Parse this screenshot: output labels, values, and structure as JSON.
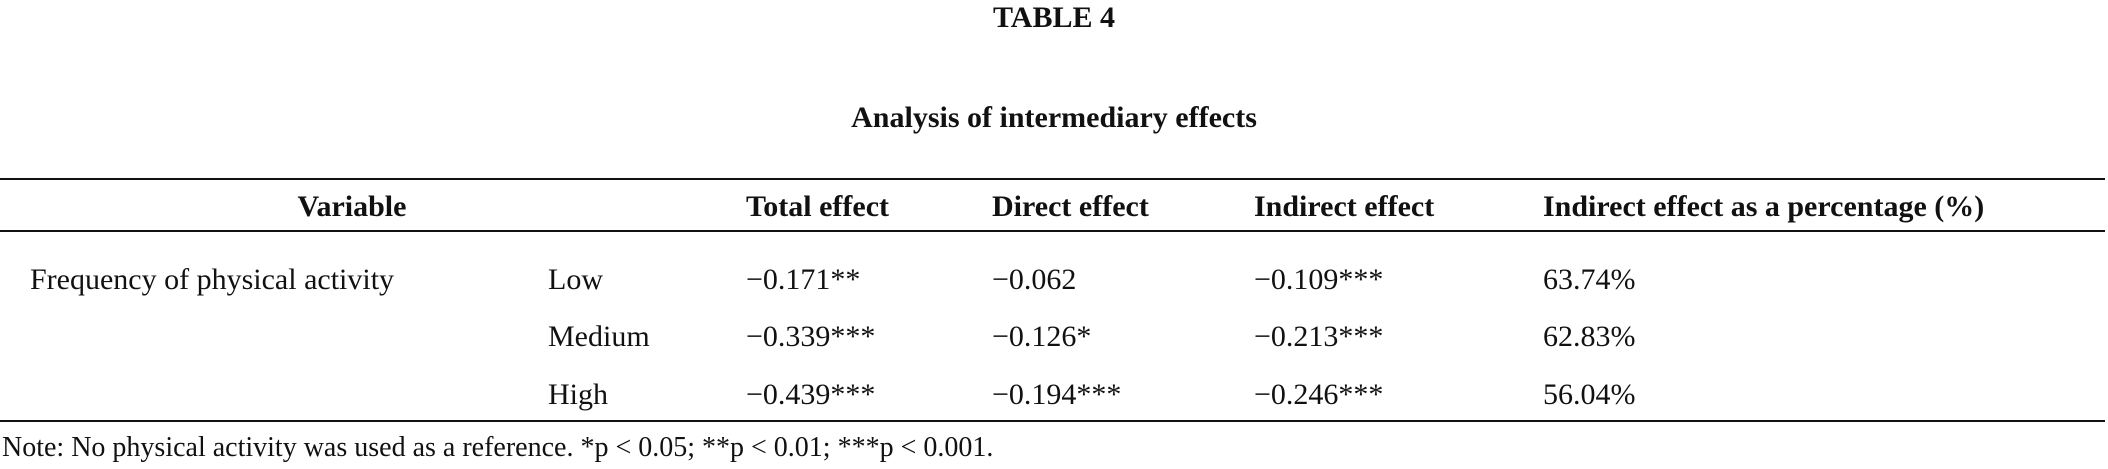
{
  "header": {
    "title": "TABLE 4",
    "subtitle": "Analysis of intermediary effects"
  },
  "table": {
    "columns": [
      "Variable",
      "Total effect",
      "Direct effect",
      "Indirect effect",
      "Indirect effect as a percentage (%)"
    ],
    "group": "Frequency of physical activity",
    "rows": [
      [
        "Low",
        "−0.171**",
        "−0.062",
        "−0.109***",
        "63.74%"
      ],
      [
        "Medium",
        "−0.339***",
        "−0.126*",
        "−0.213***",
        "62.83%"
      ],
      [
        "High",
        "−0.439***",
        "−0.194***",
        "−0.246***",
        "56.04%"
      ]
    ]
  },
  "note": "Note: No physical activity was used as a reference. *p < 0.05; **p < 0.01; ***p < 0.001."
}
